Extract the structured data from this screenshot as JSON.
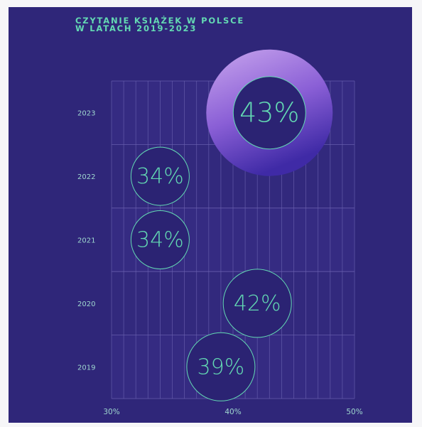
{
  "chart_data": {
    "type": "scatter",
    "title_line1": "CZYTANIE KSIĄŻEK W POLSCE",
    "title_line2": "W LATACH 2019-2023",
    "xlim": [
      30,
      50
    ],
    "x_ticks": [
      "30%",
      "40%",
      "50%"
    ],
    "categories": [
      "2023",
      "2022",
      "2021",
      "2020",
      "2019"
    ],
    "values": [
      43,
      34,
      34,
      42,
      39
    ],
    "value_labels": [
      "43%",
      "34%",
      "34%",
      "42%",
      "39%"
    ],
    "highlight": "2023",
    "grid": true,
    "colors": {
      "background": "#2f2679",
      "accent": "#63d9b3",
      "grid": "#6b62b0",
      "highlight_ring_start": "#c49be8",
      "highlight_ring_end": "#4a2fae"
    }
  }
}
